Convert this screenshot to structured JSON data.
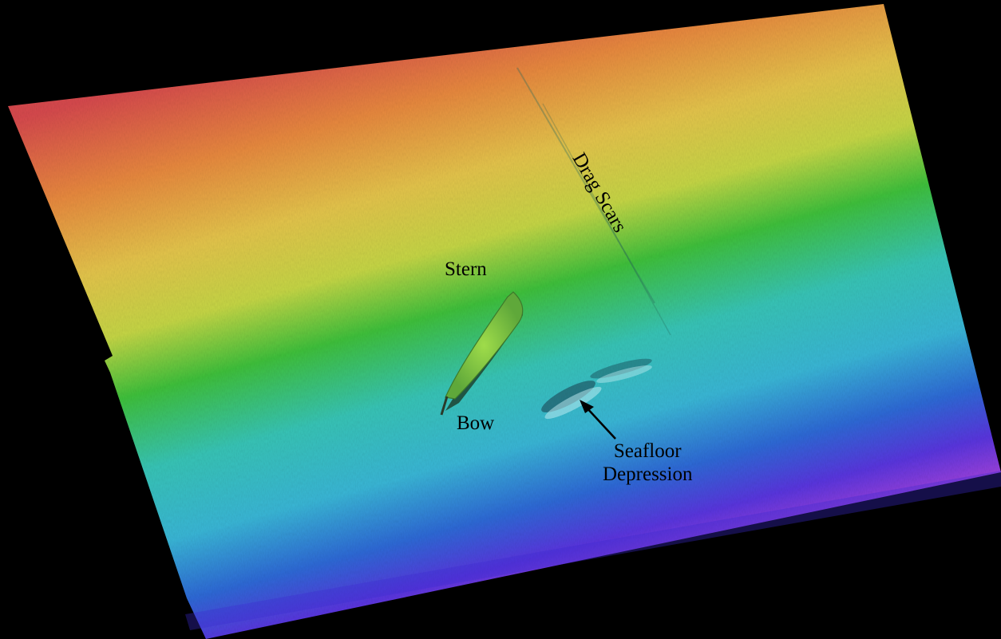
{
  "map": {
    "colormap": [
      "#d84a4e",
      "#ea8a3f",
      "#e8c84a",
      "#cfd842",
      "#3bc43a",
      "#38c6c2",
      "#2e86d8",
      "#5a3ce0",
      "#c448dc"
    ],
    "background": "#000000"
  },
  "labels": {
    "stern": "Stern",
    "bow": "Bow",
    "seafloor": "Seafloor",
    "depression": "Depression",
    "drag_scars": "Drag Scars"
  }
}
